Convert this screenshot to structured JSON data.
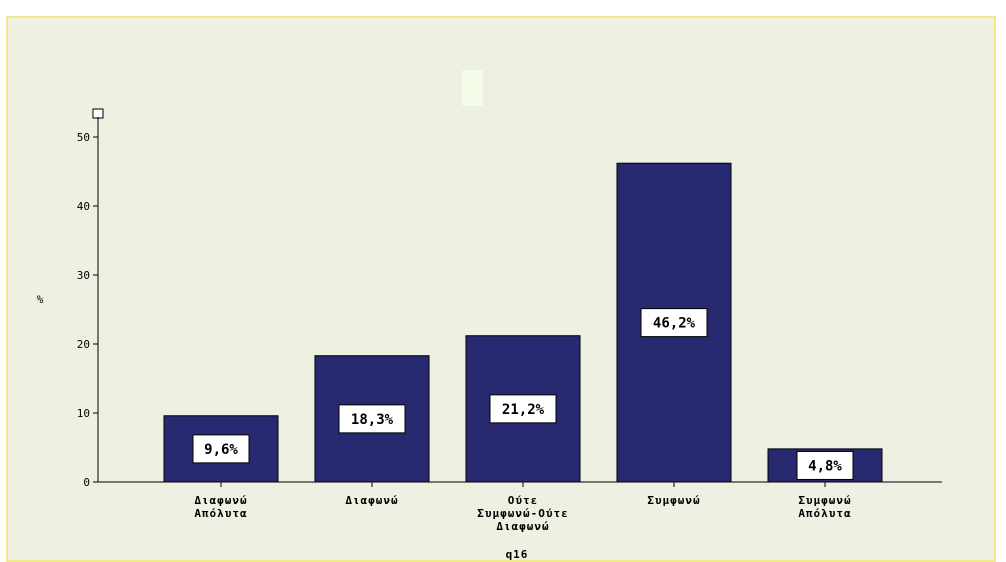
{
  "chart_data": {
    "type": "bar",
    "categories": [
      [
        "Διαφωνώ",
        "Απόλυτα"
      ],
      [
        "Διαφωνώ"
      ],
      [
        "Ούτε",
        "Συμφωνώ-Ούτε",
        "Διαφωνώ"
      ],
      [
        "Συμφωνώ"
      ],
      [
        "Συμφωνώ",
        "Απόλυτα"
      ]
    ],
    "values": [
      9.6,
      18.3,
      21.2,
      46.2,
      4.8
    ],
    "data_labels": [
      "9,6%",
      "18,3%",
      "21,2%",
      "46,2%",
      "4,8%"
    ],
    "ylabel": "%",
    "xlabel": "q16",
    "ylim": [
      0,
      50
    ],
    "yticks": [
      0,
      10,
      20,
      30,
      40,
      50
    ],
    "grid": false,
    "colors": {
      "bar": "#272a70",
      "panel": "#eef1e2",
      "frame": "#f3e98a",
      "label_box": "#ffffff"
    }
  }
}
